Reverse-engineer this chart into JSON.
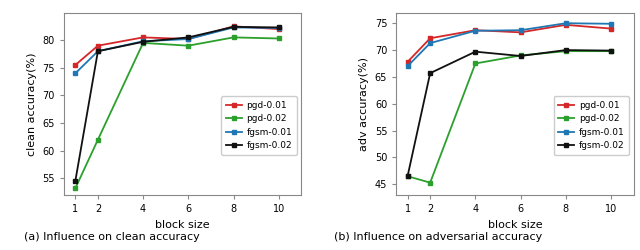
{
  "x": [
    1,
    2,
    4,
    6,
    8,
    10
  ],
  "clean": {
    "pgd-0.01": [
      75.5,
      79.0,
      80.5,
      80.2,
      82.5,
      82.0
    ],
    "pgd-0.02": [
      53.2,
      62.0,
      79.5,
      79.0,
      80.5,
      80.3
    ],
    "fgsm-0.01": [
      74.0,
      78.0,
      79.8,
      80.2,
      82.3,
      82.2
    ],
    "fgsm-0.02": [
      54.5,
      78.0,
      79.7,
      80.5,
      82.4,
      82.3
    ]
  },
  "adv": {
    "pgd-0.01": [
      67.8,
      72.2,
      73.7,
      73.3,
      74.7,
      74.0
    ],
    "pgd-0.02": [
      46.5,
      45.3,
      67.5,
      69.0,
      69.8,
      69.8
    ],
    "fgsm-0.01": [
      67.0,
      71.3,
      73.6,
      73.7,
      75.0,
      74.9
    ],
    "fgsm-0.02": [
      46.5,
      65.7,
      69.7,
      68.9,
      70.0,
      69.9
    ]
  },
  "colors": {
    "pgd-0.01": "#d62728",
    "pgd-0.02": "#2ca02c",
    "fgsm-0.01": "#1f77b4",
    "fgsm-0.02": "#111111"
  },
  "clean_ylim": [
    52,
    85
  ],
  "adv_ylim": [
    43,
    77
  ],
  "clean_yticks": [
    55,
    60,
    65,
    70,
    75,
    80
  ],
  "adv_yticks": [
    45,
    50,
    55,
    60,
    65,
    70,
    75
  ],
  "xlabel": "block size",
  "clean_ylabel": "clean accuracy(%)",
  "adv_ylabel": "adv accuracy(%)",
  "caption_a": "(a) Influence on clean accuracy",
  "caption_b": "(b) Influence on adversarial accuracy",
  "legend_labels": [
    "pgd-0.01",
    "pgd-0.02",
    "fgsm-0.01",
    "fgsm-0.02"
  ]
}
